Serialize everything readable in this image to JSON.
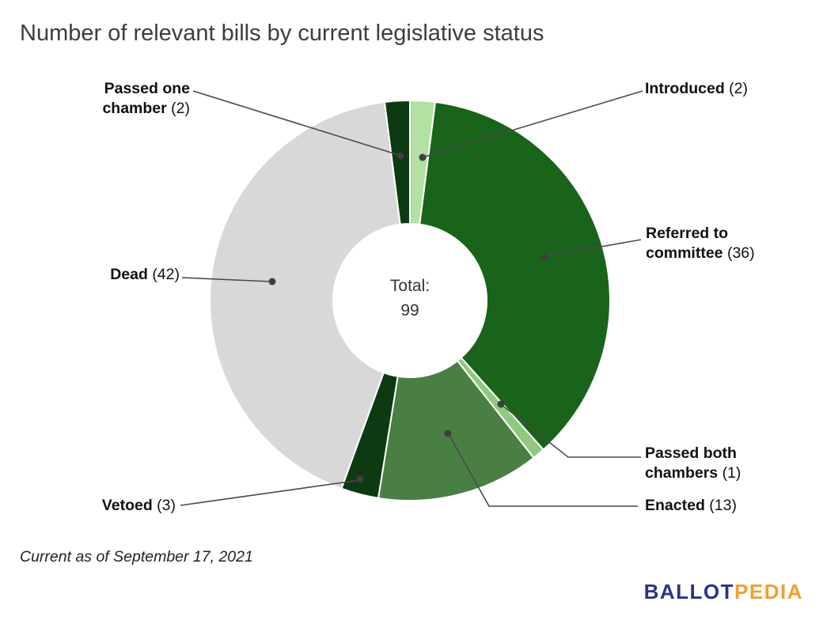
{
  "page": {
    "title": "Number of relevant bills by current legislative status",
    "footnote": "Current as of September 17, 2021",
    "logo": {
      "part1": "BALLOT",
      "part2": "PEDIA"
    }
  },
  "chart_data": {
    "type": "pie",
    "subtype": "donut",
    "title": "Number of relevant bills by current legislative status",
    "center_label": "Total:",
    "center_value": "99",
    "total": 99,
    "legend_position": "callout-labels",
    "slices": [
      {
        "label": "Introduced",
        "value": 2,
        "count_display": "(2)",
        "color": "#b3e0a3"
      },
      {
        "label": "Referred to committee",
        "value": 36,
        "count_display": "(36)",
        "color": "#1a631a"
      },
      {
        "label": "Passed both chambers",
        "value": 1,
        "count_display": "(1)",
        "color": "#8fc980"
      },
      {
        "label": "Enacted",
        "value": 13,
        "count_display": "(13)",
        "color": "#4a7f44"
      },
      {
        "label": "Vetoed",
        "value": 3,
        "count_display": "(3)",
        "color": "#0d3a11"
      },
      {
        "label": "Dead",
        "value": 42,
        "count_display": "(42)",
        "color": "#d8d8d8"
      },
      {
        "label": "Passed one chamber",
        "value": 2,
        "count_display": "(2)",
        "color": "#0d3a11"
      }
    ]
  }
}
